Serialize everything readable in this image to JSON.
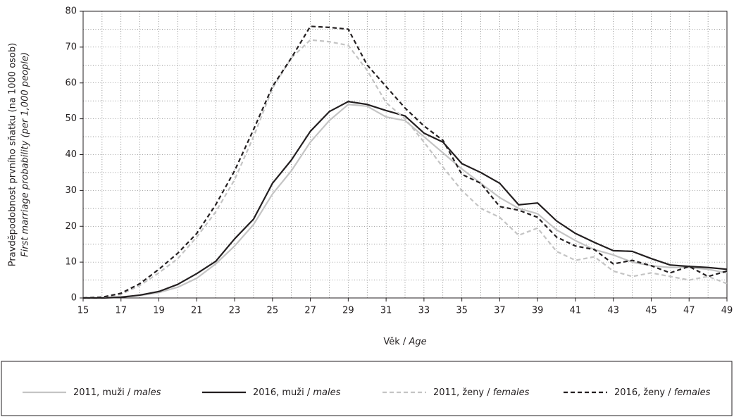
{
  "chart_data": {
    "type": "line",
    "ylabel": [
      "Pravděpodobnost prvního sňatku (na 1000 osob)",
      "First marriage probability (per 1,000 people)"
    ],
    "xlabel": "Věk / Age",
    "x": [
      15,
      16,
      17,
      18,
      19,
      20,
      21,
      22,
      23,
      24,
      25,
      26,
      27,
      28,
      29,
      30,
      31,
      32,
      33,
      34,
      35,
      36,
      37,
      38,
      39,
      40,
      41,
      42,
      43,
      44,
      45,
      46,
      47,
      48,
      49
    ],
    "xlim": [
      15,
      49
    ],
    "xticks": [
      15,
      17,
      19,
      21,
      23,
      25,
      27,
      29,
      31,
      33,
      35,
      37,
      39,
      41,
      43,
      45,
      47,
      49
    ],
    "ylim": [
      0,
      80
    ],
    "yticks": [
      0,
      10,
      20,
      30,
      40,
      50,
      60,
      70,
      80
    ],
    "minor_yticks": [
      5,
      15,
      25,
      35,
      45,
      55,
      65,
      75
    ],
    "grid": true,
    "series": [
      {
        "name": "2011, muži / males",
        "color": "#c4c4c4",
        "dashed": false,
        "values": [
          0,
          0,
          0.3,
          0.7,
          1.5,
          3,
          5.5,
          9.5,
          14.5,
          20.5,
          29,
          35.5,
          43.5,
          49.5,
          54,
          53.5,
          50.5,
          49.5,
          45,
          40.5,
          36,
          32,
          28,
          25,
          23.5,
          19,
          16,
          13.5,
          12,
          10,
          9,
          8.5,
          8.5,
          8,
          7
        ]
      },
      {
        "name": "2016, muži / males",
        "color": "#231f20",
        "dashed": false,
        "values": [
          0,
          0,
          0.2,
          0.8,
          1.8,
          3.8,
          6.8,
          10.2,
          16.5,
          22,
          32,
          38.5,
          46.5,
          52,
          54.8,
          54,
          52.3,
          50.8,
          46,
          43.5,
          37.5,
          35,
          32,
          26,
          26.5,
          21.5,
          18,
          15.5,
          13.2,
          13,
          11,
          9.2,
          8.8,
          8.5,
          8
        ]
      },
      {
        "name": "2011, ženy / females",
        "color": "#c4c4c4",
        "dashed": true,
        "values": [
          0,
          0.2,
          1,
          3.5,
          7,
          11,
          17,
          24,
          33,
          45,
          58.5,
          67,
          72,
          71.5,
          70.5,
          63.5,
          54.5,
          50,
          43.5,
          36.5,
          30,
          25,
          22.5,
          17.5,
          19.5,
          13,
          10.5,
          11.5,
          7.5,
          6,
          7,
          6,
          5,
          6,
          4
        ]
      },
      {
        "name": "2016, ženy / females",
        "color": "#231f20",
        "dashed": true,
        "values": [
          0,
          0.2,
          1.3,
          4,
          8,
          12.5,
          18,
          26,
          35.5,
          47,
          59,
          67,
          75.8,
          75.5,
          75,
          65,
          59,
          53,
          48,
          44,
          34.5,
          32,
          25.5,
          24.5,
          22.5,
          17,
          14.5,
          13.5,
          9.5,
          10.5,
          9,
          7,
          8.8,
          6,
          7.5
        ]
      }
    ]
  }
}
